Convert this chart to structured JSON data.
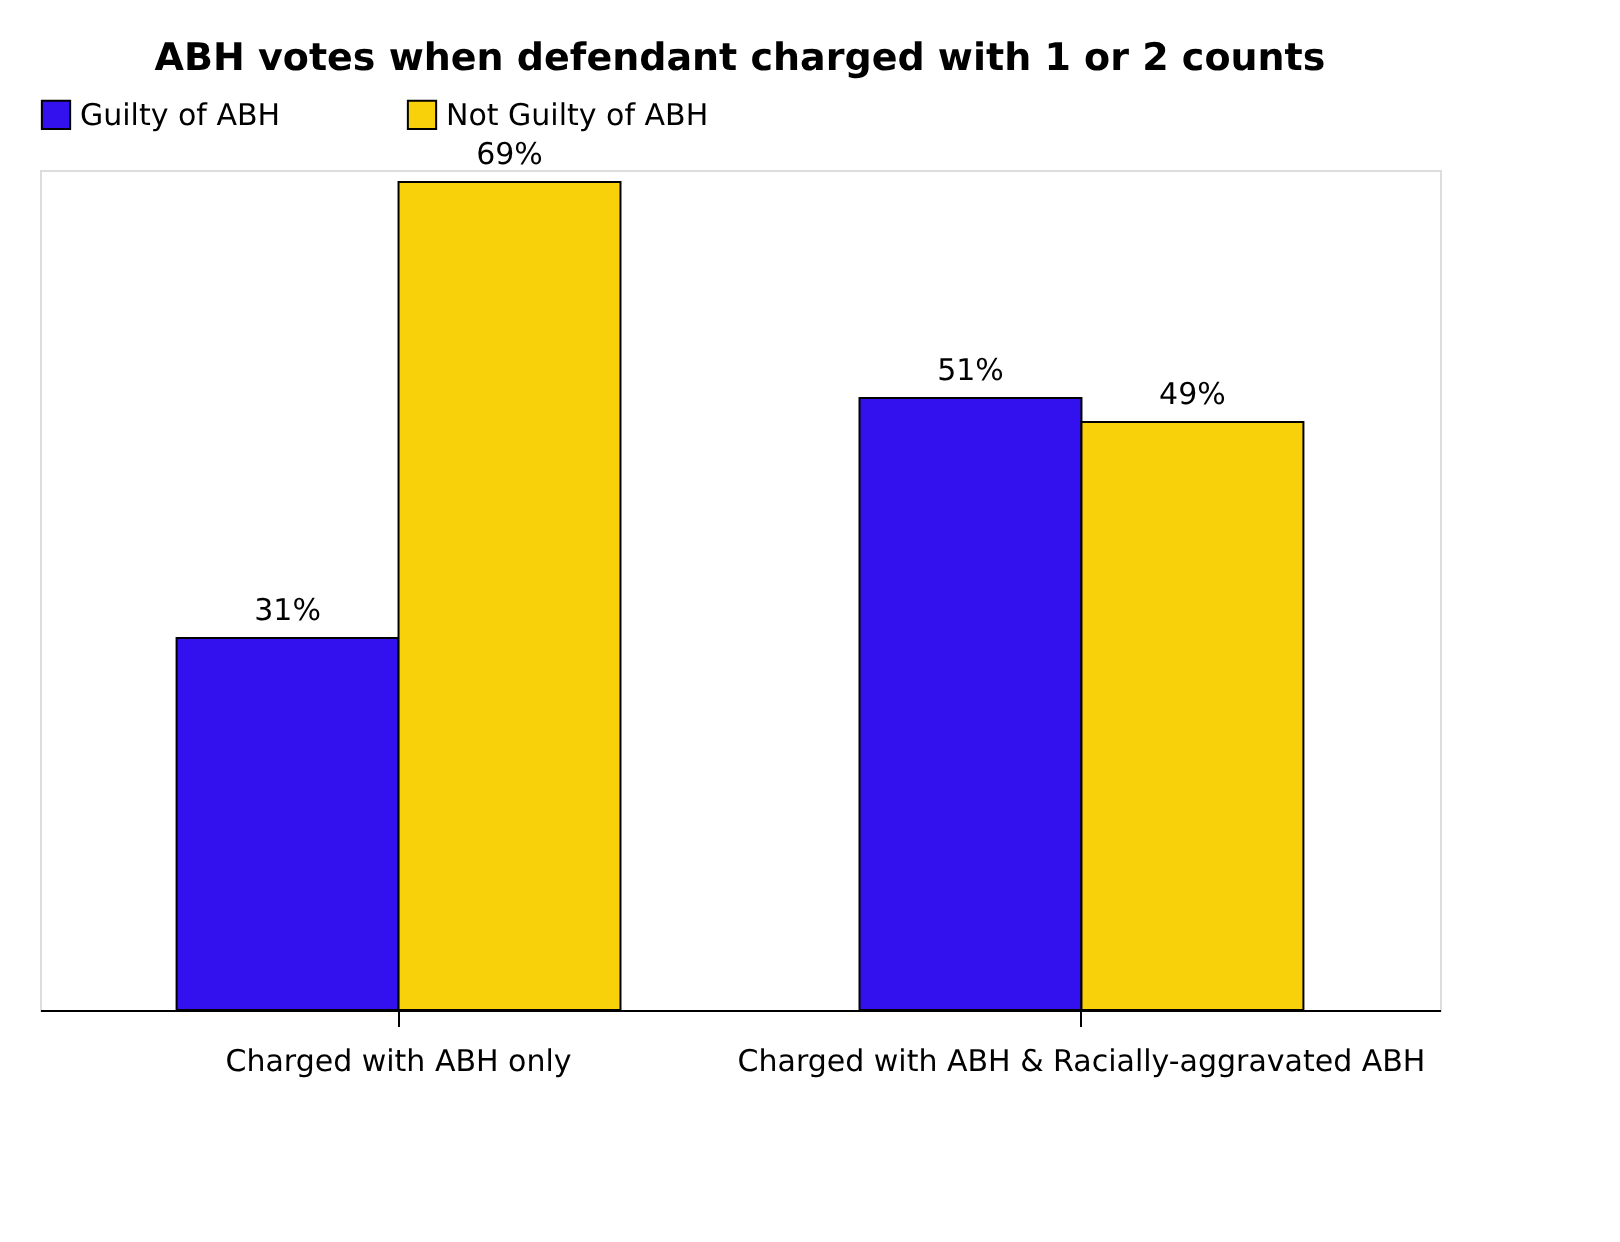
{
  "chart_data": {
    "type": "bar",
    "title": "ABH votes when defendant charged with 1 or 2 counts",
    "categories": [
      "Charged with ABH only",
      "Charged with ABH & Racially-aggravated ABH"
    ],
    "series": [
      {
        "name": "Guilty of ABH",
        "color": "#3311ee",
        "values": [
          31,
          51
        ],
        "value_labels": [
          "31%",
          "51%"
        ]
      },
      {
        "name": "Not Guilty of ABH",
        "color": "#f8d10a",
        "values": [
          69,
          49
        ],
        "value_labels": [
          "69%",
          "49%"
        ]
      }
    ],
    "legend": "top",
    "grid": false
  }
}
